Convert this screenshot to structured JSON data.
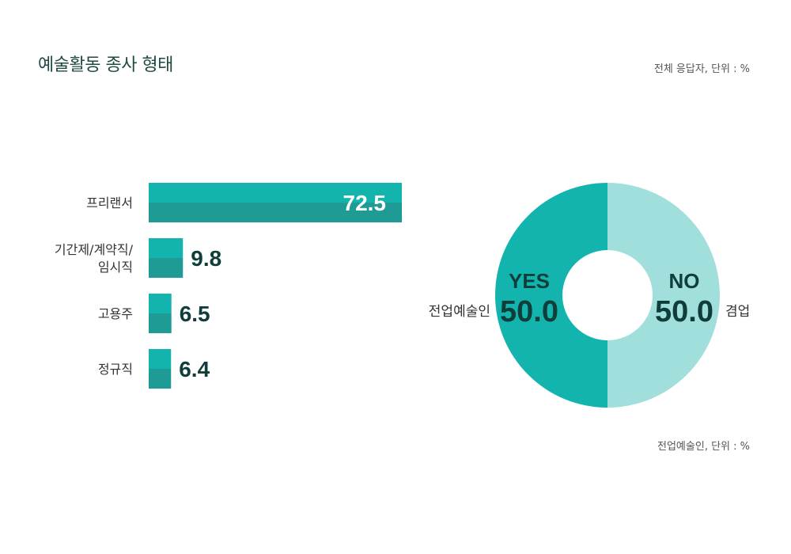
{
  "title": "예술활동 종사 형태",
  "note_top": "전체 응답자, 단위 : %",
  "note_bottom": "전업예술인, 단위 : %",
  "colors": {
    "bar_top": "#14b4ae",
    "bar_bottom": "#1f9b96",
    "pie_yes": "#14b4ae",
    "pie_no": "#a1dfdc",
    "value_text": "#0f3e3a",
    "label_text": "#333333"
  },
  "chart_data": [
    {
      "type": "bar",
      "orientation": "horizontal",
      "categories": [
        "프리랜서",
        "기간제/계약직/\n임시직",
        "고용주",
        "정규직"
      ],
      "values": [
        72.5,
        9.8,
        6.5,
        6.4
      ],
      "value_labels": [
        "72.5",
        "9.8",
        "6.5",
        "6.4"
      ]
    },
    {
      "type": "pie",
      "style": "donut",
      "slices": [
        {
          "key": "YES",
          "value": 50.0,
          "value_label": "50.0",
          "category": "전업예술인"
        },
        {
          "key": "NO",
          "value": 50.0,
          "value_label": "50.0",
          "category": "겸업"
        }
      ]
    }
  ]
}
